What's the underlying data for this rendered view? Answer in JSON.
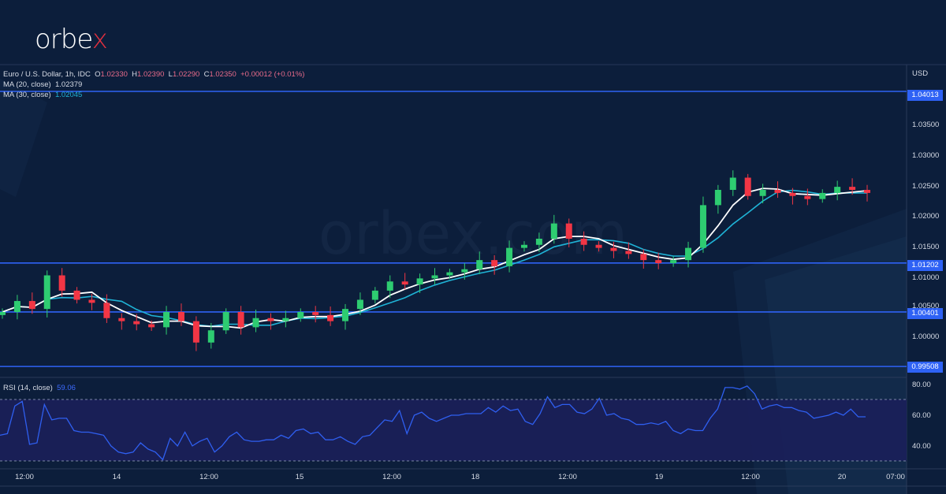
{
  "brand": {
    "logo_text_main": "orbe",
    "logo_text_accent": "x",
    "watermark": "orbex.com"
  },
  "legend": {
    "symbol": "Euro / U.S. Dollar, 1h, IDC",
    "open_label": "O",
    "open": "1.02330",
    "high_label": "H",
    "high": "1.02390",
    "low_label": "L",
    "low": "1.02290",
    "close_label": "C",
    "close": "1.02350",
    "change": "+0.00012 (+0.01%)",
    "ma20_label": "MA (20, close)",
    "ma20_value": "1.02379",
    "ma30_label": "MA (30, close)",
    "ma30_value": "1.02045",
    "rsi_label": "RSI (14, close)",
    "rsi_value": "59.06"
  },
  "price_axis": {
    "currency": "USD",
    "ticks": [
      "1.03500",
      "1.03000",
      "1.02500",
      "1.02000",
      "1.01500",
      "1.01000",
      "1.00500",
      "1.00000"
    ],
    "levels": [
      "1.04013",
      "1.01202",
      "1.00401",
      "0.99508"
    ]
  },
  "rsi_axis": {
    "ticks": [
      "80.00",
      "60.00",
      "40.00"
    ]
  },
  "time_axis": {
    "ticks": [
      "12:00",
      "14",
      "12:00",
      "15",
      "12:00",
      "18",
      "12:00",
      "19",
      "12:00",
      "20",
      "07:00"
    ]
  },
  "colors": {
    "background": "#0c1e3b",
    "bull": "#2ecc71",
    "bear": "#f23645",
    "ma20": "#ffffff",
    "ma30": "#1fb3d6",
    "level": "#2e62f5",
    "rsi": "#2f5ff0",
    "rsi_band": "#1b1f5a"
  },
  "chart_data": [
    {
      "type": "candlestick",
      "title": "Euro / U.S. Dollar, 1h, IDC",
      "ylabel": "USD",
      "ylim": [
        0.993,
        1.042
      ],
      "x_ticks": [
        "12:00",
        "14",
        "12:00",
        "15",
        "12:00",
        "18",
        "12:00",
        "19",
        "12:00",
        "20",
        "07:00"
      ],
      "ohlc_last": {
        "open": 1.0233,
        "high": 1.0239,
        "low": 1.0229,
        "close": 1.0235,
        "change": 0.00012,
        "change_pct": 0.01
      },
      "horizontal_levels": [
        1.04013,
        1.01202,
        1.00401,
        0.99508
      ],
      "series": [
        {
          "name": "MA (20, close)",
          "last": 1.02379
        },
        {
          "name": "MA (30, close)",
          "last": 1.02045
        }
      ],
      "approx_close_path": [
        1.004,
        1.0058,
        1.0045,
        1.01,
        1.0075,
        1.006,
        1.0055,
        1.003,
        1.0025,
        1.002,
        1.0015,
        1.004,
        1.0025,
        0.999,
        1.001,
        1.004,
        1.0015,
        1.003,
        1.0025,
        1.003,
        1.004,
        1.0035,
        1.0025,
        1.0045,
        1.006,
        1.0075,
        1.009,
        1.0085,
        1.0095,
        1.01,
        1.0105,
        1.011,
        1.0125,
        1.0115,
        1.0145,
        1.015,
        1.016,
        1.0185,
        1.016,
        1.015,
        1.0145,
        1.014,
        1.0135,
        1.0125,
        1.012,
        1.0125,
        1.0145,
        1.0215,
        1.024,
        1.026,
        1.023,
        1.024,
        1.0235,
        1.023,
        1.0225,
        1.0235,
        1.0245,
        1.024,
        1.0235
      ]
    },
    {
      "type": "line",
      "title": "RSI (14, close)",
      "ylim": [
        25,
        85
      ],
      "bands": [
        30,
        70
      ],
      "last": 59.06,
      "values": [
        47,
        48,
        66,
        69,
        41,
        42,
        67,
        57,
        58,
        58,
        50,
        49,
        49,
        48,
        47,
        40,
        36,
        35,
        36,
        42,
        38,
        36,
        31,
        45,
        40,
        49,
        40,
        43,
        45,
        36,
        40,
        46,
        49,
        44,
        43,
        43,
        44,
        44,
        47,
        45,
        50,
        51,
        48,
        49,
        44,
        44,
        46,
        43,
        41,
        46,
        47,
        52,
        57,
        56,
        63,
        48,
        60,
        62,
        58,
        56,
        58,
        60,
        60,
        61,
        61,
        61,
        65,
        62,
        66,
        63,
        64,
        56,
        54,
        61,
        72,
        65,
        67,
        67,
        62,
        61,
        64,
        71,
        60,
        61,
        58,
        57,
        54,
        54,
        55,
        54,
        56,
        50,
        48,
        51,
        50,
        50,
        58,
        64,
        78,
        78,
        77,
        79,
        74,
        64,
        66,
        67,
        65,
        65,
        63,
        62,
        58,
        59,
        60,
        62,
        60,
        64,
        59,
        59
      ]
    }
  ]
}
